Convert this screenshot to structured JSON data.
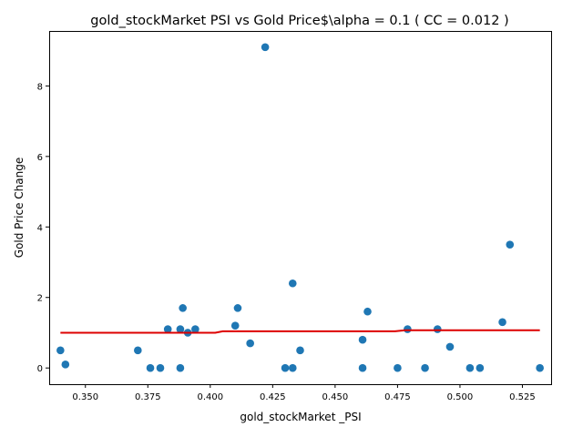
{
  "chart_data": {
    "type": "scatter",
    "title": "gold_stockMarket  PSI vs Gold Price$\\alpha = 0.1 ( CC = 0.012 )",
    "xlabel": "gold_stockMarket _PSI",
    "ylabel": "Gold Price Change",
    "xlim": [
      0.3355,
      0.5365
    ],
    "ylim": [
      -0.46,
      9.56
    ],
    "x_ticks": [
      0.35,
      0.375,
      0.4,
      0.425,
      0.45,
      0.475,
      0.5,
      0.525
    ],
    "x_tick_labels": [
      "0.350",
      "0.375",
      "0.400",
      "0.425",
      "0.450",
      "0.475",
      "0.500",
      "0.525"
    ],
    "y_ticks": [
      0,
      2,
      4,
      6,
      8
    ],
    "y_tick_labels": [
      "0",
      "2",
      "4",
      "6",
      "8"
    ],
    "grid": false,
    "scatter_color": "#1f77b4",
    "line_color": "#dd0000",
    "points": [
      {
        "x": 0.34,
        "y": 0.5
      },
      {
        "x": 0.342,
        "y": 0.1
      },
      {
        "x": 0.371,
        "y": 0.5
      },
      {
        "x": 0.376,
        "y": 0.0
      },
      {
        "x": 0.38,
        "y": 0.0
      },
      {
        "x": 0.383,
        "y": 1.1
      },
      {
        "x": 0.388,
        "y": 1.1
      },
      {
        "x": 0.388,
        "y": 0.0
      },
      {
        "x": 0.389,
        "y": 1.7
      },
      {
        "x": 0.391,
        "y": 1.0
      },
      {
        "x": 0.394,
        "y": 1.1
      },
      {
        "x": 0.41,
        "y": 1.2
      },
      {
        "x": 0.411,
        "y": 1.7
      },
      {
        "x": 0.416,
        "y": 0.7
      },
      {
        "x": 0.422,
        "y": 9.1
      },
      {
        "x": 0.43,
        "y": 0.0
      },
      {
        "x": 0.433,
        "y": 2.4
      },
      {
        "x": 0.433,
        "y": 0.0
      },
      {
        "x": 0.436,
        "y": 0.5
      },
      {
        "x": 0.461,
        "y": 0.8
      },
      {
        "x": 0.461,
        "y": 0.0
      },
      {
        "x": 0.463,
        "y": 1.6
      },
      {
        "x": 0.475,
        "y": 0.0
      },
      {
        "x": 0.479,
        "y": 1.1
      },
      {
        "x": 0.486,
        "y": 0.0
      },
      {
        "x": 0.491,
        "y": 1.1
      },
      {
        "x": 0.496,
        "y": 0.6
      },
      {
        "x": 0.504,
        "y": 0.0
      },
      {
        "x": 0.508,
        "y": 0.0
      },
      {
        "x": 0.517,
        "y": 1.3
      },
      {
        "x": 0.52,
        "y": 3.5
      },
      {
        "x": 0.532,
        "y": 0.0
      }
    ],
    "fit_line": [
      {
        "x": 0.34,
        "y": 1.0
      },
      {
        "x": 0.402,
        "y": 1.0
      },
      {
        "x": 0.405,
        "y": 1.04
      },
      {
        "x": 0.474,
        "y": 1.04
      },
      {
        "x": 0.478,
        "y": 1.07
      },
      {
        "x": 0.532,
        "y": 1.07
      }
    ]
  }
}
